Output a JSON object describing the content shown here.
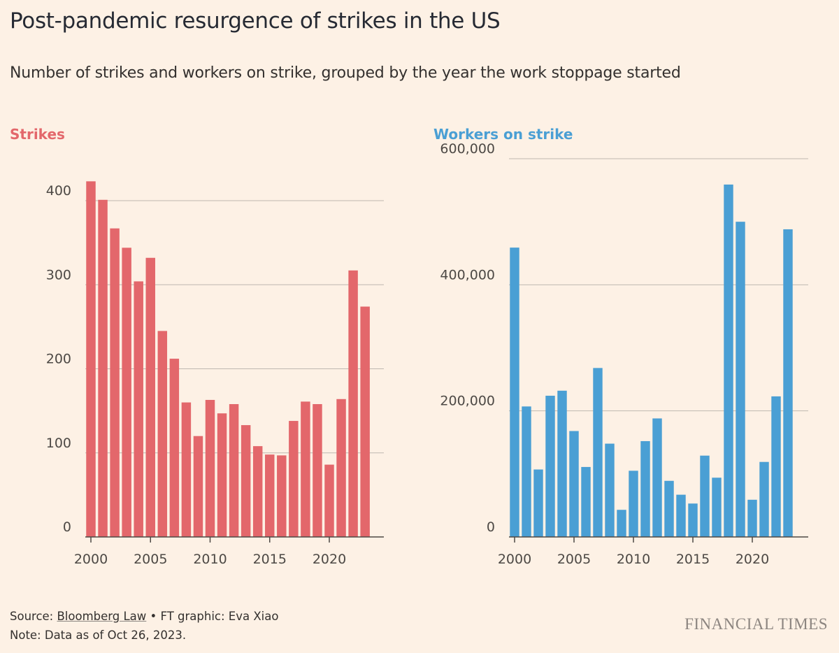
{
  "header": {
    "title": "Post-pandemic resurgence of strikes in the US",
    "subtitle": "Number of strikes and workers on strike, grouped by the year the work stoppage started"
  },
  "colors": {
    "background": "#fdf1e5",
    "strikes": "#e3676b",
    "workers": "#4a9fd4",
    "gridline": "#bfb8b0",
    "axis": "#4d4945"
  },
  "chart_data": [
    {
      "type": "bar",
      "title": "Strikes",
      "x": [
        2000,
        2001,
        2002,
        2003,
        2004,
        2005,
        2006,
        2007,
        2008,
        2009,
        2010,
        2011,
        2012,
        2013,
        2014,
        2015,
        2016,
        2017,
        2018,
        2019,
        2020,
        2021,
        2022,
        2023
      ],
      "values": [
        423,
        401,
        367,
        344,
        304,
        332,
        245,
        212,
        160,
        120,
        163,
        147,
        158,
        133,
        108,
        98,
        97,
        138,
        161,
        158,
        86,
        164,
        317,
        274
      ],
      "ylim": [
        0,
        450
      ],
      "yticks": [
        0,
        100,
        200,
        300,
        400
      ],
      "ytick_labels": [
        "0",
        "100",
        "200",
        "300",
        "400"
      ],
      "xticks": [
        2000,
        2005,
        2010,
        2015,
        2020
      ],
      "xtick_labels": [
        "2000",
        "2005",
        "2010",
        "2015",
        "2020"
      ],
      "grid": true
    },
    {
      "type": "bar",
      "title": "Workers on strike",
      "x": [
        2000,
        2001,
        2002,
        2003,
        2004,
        2005,
        2006,
        2007,
        2008,
        2009,
        2010,
        2011,
        2012,
        2013,
        2014,
        2015,
        2016,
        2017,
        2018,
        2019,
        2020,
        2021,
        2022,
        2023
      ],
      "values": [
        459000,
        207000,
        107000,
        224000,
        232000,
        168000,
        111000,
        268000,
        148000,
        43000,
        105000,
        152000,
        188000,
        89000,
        67000,
        53000,
        129000,
        94000,
        559000,
        500000,
        59000,
        119000,
        223000,
        488000
      ],
      "ylim": [
        0,
        600000
      ],
      "yticks": [
        0,
        200000,
        400000,
        600000
      ],
      "ytick_labels": [
        "0",
        "200,000",
        "400,000",
        "600,000"
      ],
      "xticks": [
        2000,
        2005,
        2010,
        2015,
        2020
      ],
      "xtick_labels": [
        "2000",
        "2005",
        "2010",
        "2015",
        "2020"
      ],
      "grid": true
    }
  ],
  "footer": {
    "source_prefix": "Source: ",
    "source_link": "Bloomberg Law",
    "source_suffix": " • FT graphic: Eva Xiao",
    "note": "Note: Data as of Oct 26, 2023."
  },
  "logo": {
    "text": "FINANCIAL TIMES"
  }
}
